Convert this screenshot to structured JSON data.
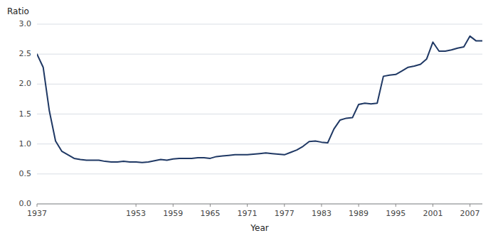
{
  "chart_data": {
    "type": "line",
    "xlabel": "Year",
    "ylabel": "Ratio",
    "color": "#1F3864",
    "grid": true,
    "xlim": [
      1937,
      2009
    ],
    "ylim": [
      0.0,
      3.0
    ],
    "xticks": [
      1937,
      1953,
      1959,
      1965,
      1971,
      1977,
      1983,
      1989,
      1995,
      2001,
      2007
    ],
    "yticks": [
      {
        "value": 0,
        "label": "0.0"
      },
      0.5,
      {
        "value": 1,
        "label": "1.0"
      },
      1.5,
      {
        "value": 2,
        "label": "2.0"
      },
      2.5,
      {
        "value": 3,
        "label": "3.0"
      }
    ],
    "x": [
      1937,
      1938,
      1939,
      1940,
      1941,
      1942,
      1943,
      1944,
      1945,
      1946,
      1947,
      1948,
      1949,
      1950,
      1951,
      1952,
      1953,
      1954,
      1955,
      1956,
      1957,
      1958,
      1959,
      1960,
      1961,
      1962,
      1963,
      1964,
      1965,
      1966,
      1967,
      1968,
      1969,
      1970,
      1971,
      1972,
      1973,
      1974,
      1975,
      1976,
      1977,
      1978,
      1979,
      1980,
      1981,
      1982,
      1983,
      1984,
      1985,
      1986,
      1987,
      1988,
      1989,
      1990,
      1991,
      1992,
      1993,
      1994,
      1995,
      1996,
      1997,
      1998,
      1999,
      2000,
      2001,
      2002,
      2003,
      2004,
      2005,
      2006,
      2007,
      2008,
      2009
    ],
    "values": [
      2.5,
      2.28,
      1.55,
      1.05,
      0.88,
      0.82,
      0.76,
      0.74,
      0.73,
      0.73,
      0.73,
      0.71,
      0.7,
      0.7,
      0.71,
      0.7,
      0.7,
      0.69,
      0.7,
      0.72,
      0.74,
      0.73,
      0.75,
      0.76,
      0.76,
      0.76,
      0.77,
      0.77,
      0.76,
      0.79,
      0.8,
      0.81,
      0.82,
      0.82,
      0.82,
      0.83,
      0.84,
      0.85,
      0.84,
      0.83,
      0.82,
      0.86,
      0.9,
      0.96,
      1.04,
      1.05,
      1.03,
      1.02,
      1.25,
      1.4,
      1.43,
      1.44,
      1.66,
      1.68,
      1.67,
      1.68,
      2.13,
      2.15,
      2.16,
      2.22,
      2.28,
      2.3,
      2.33,
      2.42,
      2.7,
      2.55,
      2.55,
      2.57,
      2.6,
      2.62,
      2.8,
      2.72,
      2.72
    ]
  }
}
